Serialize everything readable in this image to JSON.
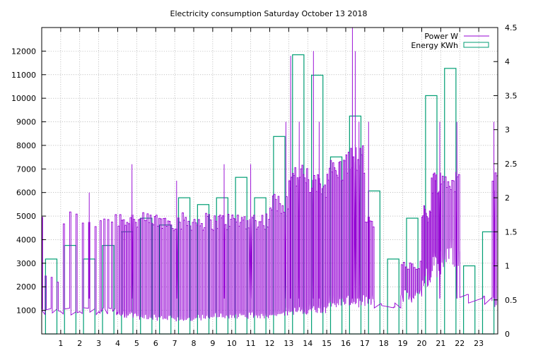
{
  "chart_data": {
    "type": "bar",
    "title": "Electricity consumption Saturday October 13 2018",
    "xlabel": "",
    "ylabel": "",
    "x_ticks": [
      "1",
      "2",
      "3",
      "4",
      "5",
      "6",
      "7",
      "8",
      "9",
      "10",
      "11",
      "12",
      "13",
      "14",
      "15",
      "16",
      "17",
      "18",
      "19",
      "20",
      "21",
      "22",
      "23"
    ],
    "x_range": [
      0,
      24
    ],
    "y_left": {
      "range": [
        0,
        13000
      ],
      "ticks": [
        1000,
        2000,
        3000,
        4000,
        5000,
        6000,
        7000,
        8000,
        9000,
        10000,
        11000,
        12000
      ]
    },
    "y_right": {
      "range": [
        0,
        4.5
      ],
      "ticks": [
        "0",
        "0.5",
        "1",
        "1.5",
        "2",
        "2.5",
        "3",
        "3.5",
        "4",
        "4.5"
      ]
    },
    "grid": true,
    "legend_position": "top-right",
    "series": [
      {
        "name": "Power W",
        "axis": "left",
        "type": "line",
        "color": "#9400d3",
        "segments": [
          {
            "start": 0.0,
            "end": 0.05,
            "base": 1000,
            "peak": 5200,
            "count": 2
          },
          {
            "start": 0.05,
            "end": 1.0,
            "base": 950,
            "peak": 2500,
            "count": 3
          },
          {
            "start": 1.0,
            "end": 2.0,
            "base": 950,
            "peak": 5300,
            "count": 3
          },
          {
            "start": 2.0,
            "end": 3.0,
            "base": 950,
            "peak": 5200,
            "count": 3
          },
          {
            "start": 3.0,
            "end": 4.0,
            "base": 950,
            "peak": 5300,
            "count": 5
          },
          {
            "start": 4.0,
            "end": 5.0,
            "base": 850,
            "peak": 5300,
            "count": 11
          },
          {
            "start": 5.0,
            "end": 6.0,
            "base": 750,
            "peak": 5150,
            "count": 13
          },
          {
            "start": 6.0,
            "end": 7.0,
            "base": 700,
            "peak": 5150,
            "count": 13
          },
          {
            "start": 7.0,
            "end": 8.0,
            "base": 650,
            "peak": 5150,
            "count": 13
          },
          {
            "start": 8.0,
            "end": 9.0,
            "base": 700,
            "peak": 5150,
            "count": 13
          },
          {
            "start": 9.0,
            "end": 10.0,
            "base": 800,
            "peak": 5150,
            "count": 14
          },
          {
            "start": 10.0,
            "end": 11.0,
            "base": 800,
            "peak": 5200,
            "count": 14
          },
          {
            "start": 11.0,
            "end": 12.0,
            "base": 800,
            "peak": 5200,
            "count": 14
          },
          {
            "start": 12.0,
            "end": 13.0,
            "base": 950,
            "peak": 6000,
            "count": 14
          },
          {
            "start": 13.0,
            "end": 14.0,
            "base": 1000,
            "peak": 7200,
            "count": 16
          },
          {
            "start": 14.0,
            "end": 15.0,
            "base": 1100,
            "peak": 6800,
            "count": 16
          },
          {
            "start": 15.0,
            "end": 16.0,
            "base": 1400,
            "peak": 7500,
            "count": 16
          },
          {
            "start": 16.0,
            "end": 17.0,
            "base": 1400,
            "peak": 8000,
            "count": 16
          },
          {
            "start": 17.0,
            "end": 17.5,
            "base": 1400,
            "peak": 5000,
            "count": 6
          },
          {
            "start": 17.5,
            "end": 18.9,
            "base": 1100,
            "peak": 1300,
            "count": 2
          },
          {
            "start": 18.9,
            "end": 20.0,
            "base": 1600,
            "peak": 3200,
            "count": 10
          },
          {
            "start": 20.0,
            "end": 20.5,
            "base": 2400,
            "peak": 5500,
            "count": 10
          },
          {
            "start": 20.5,
            "end": 21.0,
            "base": 3000,
            "peak": 7000,
            "count": 10
          },
          {
            "start": 21.0,
            "end": 22.0,
            "base": 3500,
            "peak": 7000,
            "count": 14
          },
          {
            "start": 22.0,
            "end": 23.7,
            "base": 1550,
            "peak": 1700,
            "count": 2
          },
          {
            "start": 23.7,
            "end": 24.0,
            "base": 1400,
            "peak": 7000,
            "count": 4
          }
        ],
        "spikes": [
          {
            "x": 16.35,
            "y": 13000
          },
          {
            "x": 16.5,
            "y": 12000
          },
          {
            "x": 14.3,
            "y": 12000
          },
          {
            "x": 13.1,
            "y": 11800
          },
          {
            "x": 12.85,
            "y": 9000
          },
          {
            "x": 13.55,
            "y": 9000
          },
          {
            "x": 14.6,
            "y": 9000
          },
          {
            "x": 16.7,
            "y": 9000
          },
          {
            "x": 17.2,
            "y": 9000
          },
          {
            "x": 20.95,
            "y": 9000
          },
          {
            "x": 21.85,
            "y": 9000
          },
          {
            "x": 23.8,
            "y": 9000
          },
          {
            "x": 4.75,
            "y": 7200
          },
          {
            "x": 7.1,
            "y": 6500
          },
          {
            "x": 9.6,
            "y": 7200
          },
          {
            "x": 11.0,
            "y": 7200
          },
          {
            "x": 2.5,
            "y": 6000
          }
        ]
      },
      {
        "name": "Energy KWh",
        "axis": "right",
        "type": "bar",
        "color": "#009e73",
        "bars": [
          {
            "x": 0,
            "value": 1.1
          },
          {
            "x": 1,
            "value": 1.3
          },
          {
            "x": 2,
            "value": 1.1
          },
          {
            "x": 3,
            "value": 1.3
          },
          {
            "x": 4,
            "value": 1.5
          },
          {
            "x": 5,
            "value": 1.7
          },
          {
            "x": 6,
            "value": 1.6
          },
          {
            "x": 7,
            "value": 2.0
          },
          {
            "x": 8,
            "value": 1.9
          },
          {
            "x": 9,
            "value": 2.0
          },
          {
            "x": 10,
            "value": 2.3
          },
          {
            "x": 11,
            "value": 2.0
          },
          {
            "x": 12,
            "value": 2.9
          },
          {
            "x": 13,
            "value": 4.1
          },
          {
            "x": 14,
            "value": 3.8
          },
          {
            "x": 15,
            "value": 2.6
          },
          {
            "x": 16,
            "value": 3.2
          },
          {
            "x": 17,
            "value": 2.1
          },
          {
            "x": 18,
            "value": 1.1
          },
          {
            "x": 19,
            "value": 1.7
          },
          {
            "x": 20,
            "value": 3.5
          },
          {
            "x": 21,
            "value": 3.9
          },
          {
            "x": 22,
            "value": 1.0
          },
          {
            "x": 23,
            "value": 1.5
          }
        ]
      }
    ]
  }
}
